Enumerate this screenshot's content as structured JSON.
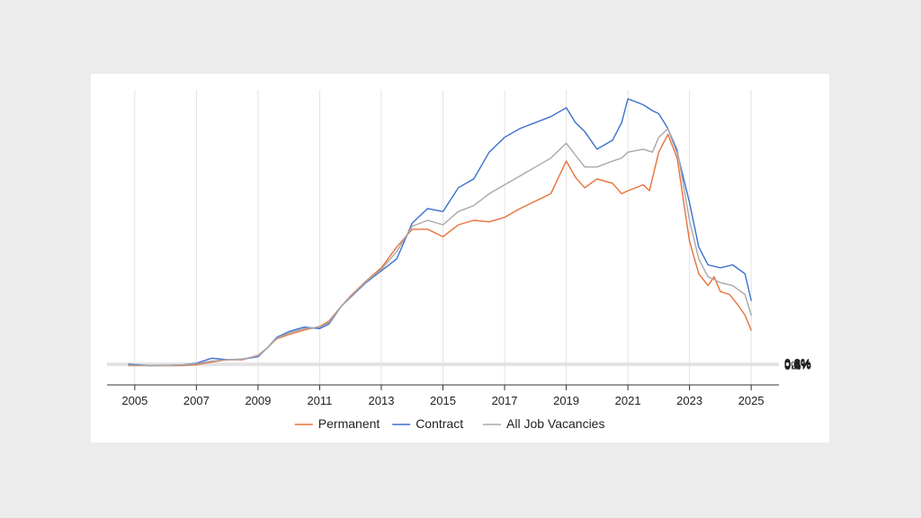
{
  "chart_data": {
    "type": "line",
    "x_ticks": [
      "2005",
      "2007",
      "2009",
      "2011",
      "2013",
      "2015",
      "2017",
      "2019",
      "2021",
      "2023",
      "2025"
    ],
    "y_ticks": [
      "0%",
      "0.1%",
      "0.2%",
      "0.3%",
      "0.4%",
      "0.5%",
      "0.6%",
      "0.7%",
      "0.8%",
      "0.9%"
    ],
    "xlim": [
      2004.1,
      2025.9
    ],
    "ylim": [
      -0.065,
      0.93
    ],
    "y_axis_side": "right",
    "grid": true,
    "legend_position": "bottom-center",
    "series": [
      {
        "name": "Permanent",
        "color": "#e8703a",
        "points": [
          [
            2004.8,
            0.0
          ],
          [
            2005.5,
            0.0
          ],
          [
            2006.5,
            0.0
          ],
          [
            2007.0,
            0.003
          ],
          [
            2007.5,
            0.012
          ],
          [
            2008.0,
            0.02
          ],
          [
            2008.5,
            0.02
          ],
          [
            2009.0,
            0.035
          ],
          [
            2009.3,
            0.06
          ],
          [
            2009.6,
            0.09
          ],
          [
            2010.0,
            0.105
          ],
          [
            2010.5,
            0.12
          ],
          [
            2011.0,
            0.132
          ],
          [
            2011.3,
            0.15
          ],
          [
            2011.7,
            0.2
          ],
          [
            2012.0,
            0.235
          ],
          [
            2012.5,
            0.285
          ],
          [
            2013.0,
            0.33
          ],
          [
            2013.5,
            0.4
          ],
          [
            2014.0,
            0.46
          ],
          [
            2014.5,
            0.46
          ],
          [
            2015.0,
            0.435
          ],
          [
            2015.5,
            0.475
          ],
          [
            2016.0,
            0.49
          ],
          [
            2016.5,
            0.485
          ],
          [
            2017.0,
            0.5
          ],
          [
            2017.5,
            0.53
          ],
          [
            2018.0,
            0.555
          ],
          [
            2018.5,
            0.58
          ],
          [
            2019.0,
            0.69
          ],
          [
            2019.3,
            0.635
          ],
          [
            2019.6,
            0.6
          ],
          [
            2020.0,
            0.63
          ],
          [
            2020.5,
            0.615
          ],
          [
            2020.8,
            0.58
          ],
          [
            2021.0,
            0.59
          ],
          [
            2021.5,
            0.61
          ],
          [
            2021.7,
            0.59
          ],
          [
            2022.0,
            0.72
          ],
          [
            2022.3,
            0.78
          ],
          [
            2022.6,
            0.7
          ],
          [
            2023.0,
            0.42
          ],
          [
            2023.3,
            0.31
          ],
          [
            2023.6,
            0.27
          ],
          [
            2023.8,
            0.3
          ],
          [
            2024.0,
            0.25
          ],
          [
            2024.3,
            0.24
          ],
          [
            2024.6,
            0.2
          ],
          [
            2024.8,
            0.17
          ],
          [
            2025.0,
            0.12
          ]
        ]
      },
      {
        "name": "Contract",
        "color": "#3b6fcf",
        "points": [
          [
            2004.8,
            0.005
          ],
          [
            2005.5,
            0.0
          ],
          [
            2006.5,
            0.002
          ],
          [
            2007.0,
            0.008
          ],
          [
            2007.5,
            0.025
          ],
          [
            2008.0,
            0.02
          ],
          [
            2008.5,
            0.022
          ],
          [
            2009.0,
            0.03
          ],
          [
            2009.3,
            0.06
          ],
          [
            2009.6,
            0.095
          ],
          [
            2010.0,
            0.115
          ],
          [
            2010.5,
            0.13
          ],
          [
            2011.0,
            0.125
          ],
          [
            2011.3,
            0.14
          ],
          [
            2011.7,
            0.2
          ],
          [
            2012.0,
            0.23
          ],
          [
            2012.5,
            0.28
          ],
          [
            2013.0,
            0.32
          ],
          [
            2013.5,
            0.36
          ],
          [
            2014.0,
            0.48
          ],
          [
            2014.5,
            0.53
          ],
          [
            2015.0,
            0.52
          ],
          [
            2015.5,
            0.6
          ],
          [
            2016.0,
            0.63
          ],
          [
            2016.5,
            0.72
          ],
          [
            2017.0,
            0.77
          ],
          [
            2017.5,
            0.8
          ],
          [
            2018.0,
            0.82
          ],
          [
            2018.5,
            0.84
          ],
          [
            2019.0,
            0.87
          ],
          [
            2019.3,
            0.82
          ],
          [
            2019.6,
            0.79
          ],
          [
            2020.0,
            0.73
          ],
          [
            2020.5,
            0.76
          ],
          [
            2020.8,
            0.82
          ],
          [
            2021.0,
            0.9
          ],
          [
            2021.5,
            0.88
          ],
          [
            2021.8,
            0.86
          ],
          [
            2022.0,
            0.85
          ],
          [
            2022.3,
            0.8
          ],
          [
            2022.6,
            0.72
          ],
          [
            2023.0,
            0.55
          ],
          [
            2023.3,
            0.4
          ],
          [
            2023.6,
            0.34
          ],
          [
            2024.0,
            0.33
          ],
          [
            2024.4,
            0.34
          ],
          [
            2024.8,
            0.31
          ],
          [
            2025.0,
            0.22
          ]
        ]
      },
      {
        "name": "All Job Vacancies",
        "color": "#a8a8a8",
        "points": [
          [
            2004.8,
            0.002
          ],
          [
            2005.5,
            0.0
          ],
          [
            2006.5,
            0.002
          ],
          [
            2007.0,
            0.006
          ],
          [
            2007.5,
            0.015
          ],
          [
            2008.0,
            0.02
          ],
          [
            2008.5,
            0.022
          ],
          [
            2009.0,
            0.033
          ],
          [
            2009.3,
            0.06
          ],
          [
            2009.6,
            0.092
          ],
          [
            2010.0,
            0.11
          ],
          [
            2010.5,
            0.125
          ],
          [
            2011.0,
            0.13
          ],
          [
            2011.3,
            0.145
          ],
          [
            2011.7,
            0.2
          ],
          [
            2012.0,
            0.232
          ],
          [
            2012.5,
            0.283
          ],
          [
            2013.0,
            0.325
          ],
          [
            2013.5,
            0.385
          ],
          [
            2014.0,
            0.47
          ],
          [
            2014.5,
            0.49
          ],
          [
            2015.0,
            0.475
          ],
          [
            2015.5,
            0.52
          ],
          [
            2016.0,
            0.54
          ],
          [
            2016.5,
            0.58
          ],
          [
            2017.0,
            0.61
          ],
          [
            2017.5,
            0.64
          ],
          [
            2018.0,
            0.67
          ],
          [
            2018.5,
            0.7
          ],
          [
            2019.0,
            0.75
          ],
          [
            2019.3,
            0.71
          ],
          [
            2019.6,
            0.67
          ],
          [
            2020.0,
            0.67
          ],
          [
            2020.5,
            0.69
          ],
          [
            2020.8,
            0.7
          ],
          [
            2021.0,
            0.72
          ],
          [
            2021.5,
            0.73
          ],
          [
            2021.8,
            0.72
          ],
          [
            2022.0,
            0.77
          ],
          [
            2022.3,
            0.8
          ],
          [
            2022.6,
            0.73
          ],
          [
            2023.0,
            0.49
          ],
          [
            2023.3,
            0.36
          ],
          [
            2023.6,
            0.3
          ],
          [
            2024.0,
            0.28
          ],
          [
            2024.4,
            0.27
          ],
          [
            2024.8,
            0.24
          ],
          [
            2025.0,
            0.17
          ]
        ]
      }
    ]
  }
}
